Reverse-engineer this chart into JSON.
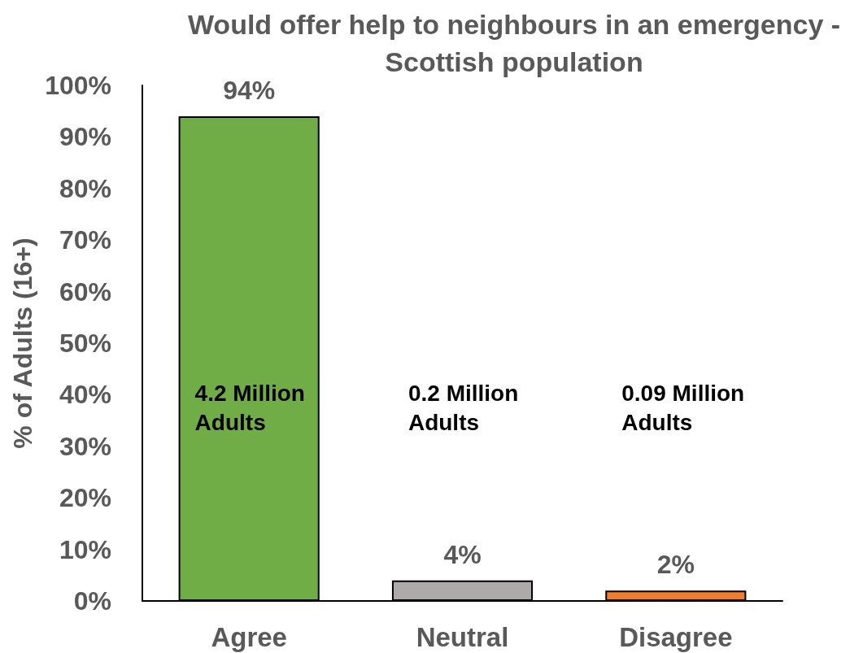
{
  "chart_data": {
    "type": "bar",
    "title": "Would offer help to neighbours in an emergency - Scottish population",
    "ylabel": "% of Adults (16+)",
    "categories": [
      "Agree",
      "Neutral",
      "Disagree"
    ],
    "values": [
      94,
      4,
      2
    ],
    "colors": [
      "#70ad47",
      "#aeaaaa",
      "#ed7d31"
    ],
    "value_labels": [
      "94%",
      "4%",
      "2%"
    ],
    "ylim": [
      0,
      100
    ],
    "yticks": [
      {
        "value": 0,
        "label": "0%"
      },
      {
        "value": 10,
        "label": "10%"
      },
      {
        "value": 20,
        "label": "20%"
      },
      {
        "value": 30,
        "label": "30%"
      },
      {
        "value": 40,
        "label": "40%"
      },
      {
        "value": 50,
        "label": "50%"
      },
      {
        "value": 60,
        "label": "60%"
      },
      {
        "value": 70,
        "label": "70%"
      },
      {
        "value": 80,
        "label": "80%"
      },
      {
        "value": 90,
        "label": "90%"
      },
      {
        "value": 100,
        "label": "100%"
      }
    ],
    "grid": false,
    "annotations": [
      "4.2 Million Adults",
      "0.2 Million Adults",
      "0.09 Million Adults"
    ]
  }
}
